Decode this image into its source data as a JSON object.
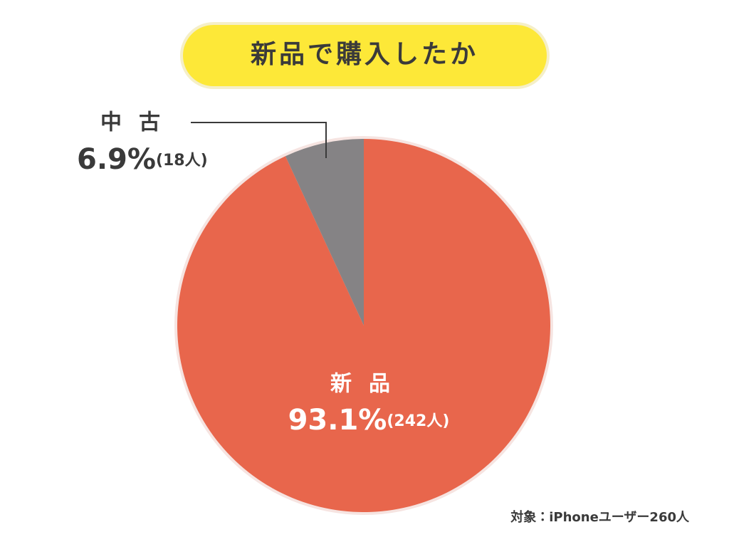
{
  "chart_data": {
    "type": "pie",
    "title": "新品で購入したか",
    "categories": [
      "新品",
      "中古"
    ],
    "values": [
      93.1,
      6.9
    ],
    "value_labels": [
      "93.1%",
      "6.9%"
    ],
    "count_labels": [
      "(242人)",
      "(18人)"
    ],
    "colors": [
      "#e8664c",
      "#858385"
    ],
    "note": "対象：iPhoneユーザー260人"
  }
}
